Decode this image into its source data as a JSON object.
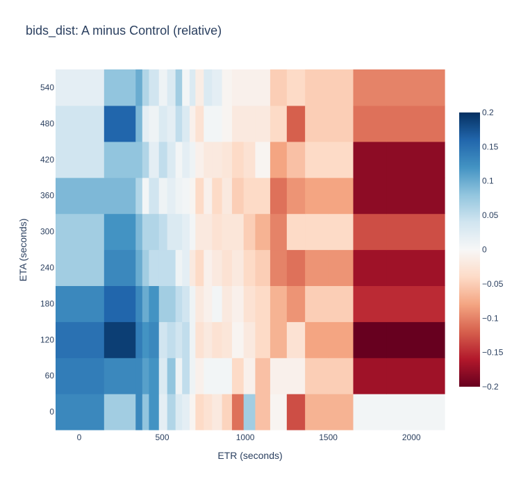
{
  "chart_data": {
    "type": "heatmap",
    "title": "bids_dist: A minus Control (relative)",
    "xlabel": "ETR (seconds)",
    "ylabel": "ETA (seconds)",
    "colorscale": "RdBu",
    "zlim": [
      -0.2,
      0.2
    ],
    "x_edges": [
      -142,
      150,
      340,
      380,
      420,
      480,
      530,
      580,
      620,
      665,
      700,
      750,
      800,
      860,
      920,
      990,
      1060,
      1150,
      1250,
      1360,
      1500,
      1650,
      1850,
      2200
    ],
    "y_edges": [
      -30,
      30,
      90,
      150,
      210,
      270,
      330,
      390,
      450,
      510,
      570
    ],
    "x_ticks": [
      {
        "value": 0,
        "label": "0"
      },
      {
        "value": 500,
        "label": "500"
      },
      {
        "value": 1000,
        "label": "1000"
      },
      {
        "value": 1500,
        "label": "1500"
      },
      {
        "value": 2000,
        "label": "2000"
      }
    ],
    "y_ticks": [
      {
        "value": 0,
        "label": "0"
      },
      {
        "value": 60,
        "label": "60"
      },
      {
        "value": 120,
        "label": "120"
      },
      {
        "value": 180,
        "label": "180"
      },
      {
        "value": 240,
        "label": "240"
      },
      {
        "value": 300,
        "label": "300"
      },
      {
        "value": 360,
        "label": "360"
      },
      {
        "value": 420,
        "label": "420"
      },
      {
        "value": 480,
        "label": "480"
      },
      {
        "value": 540,
        "label": "540"
      }
    ],
    "colorbar_ticks": [
      {
        "value": 0.2,
        "label": "0.2"
      },
      {
        "value": 0.15,
        "label": "0.15"
      },
      {
        "value": 0.1,
        "label": "0.1"
      },
      {
        "value": 0.05,
        "label": "0.05"
      },
      {
        "value": 0,
        "label": "0"
      },
      {
        "value": -0.05,
        "label": "−0.05"
      },
      {
        "value": -0.1,
        "label": "−0.1"
      },
      {
        "value": -0.15,
        "label": "−0.15"
      },
      {
        "value": -0.2,
        "label": "−0.2"
      }
    ],
    "z": [
      [
        0.13,
        0.07,
        0.13,
        0.08,
        0.12,
        0.02,
        0.06,
        0.03,
        0.02,
        -0.005,
        -0.04,
        -0.03,
        -0.02,
        -0.045,
        -0.11,
        0.07,
        -0.06,
        -0.005,
        -0.13,
        -0.07,
        -0.07,
        0.005,
        0.005
      ],
      [
        0.14,
        0.13,
        0.13,
        0.11,
        0.12,
        0.03,
        0.08,
        0.01,
        0.05,
        0.01,
        -0.01,
        0.005,
        0.005,
        0.005,
        -0.04,
        -0.01,
        -0.06,
        -0.01,
        -0.01,
        -0.05,
        -0.05,
        -0.17,
        -0.17
      ],
      [
        0.15,
        0.19,
        0.14,
        0.12,
        0.13,
        0.04,
        0.05,
        0.04,
        0.05,
        0.01,
        -0.03,
        -0.02,
        -0.03,
        -0.025,
        -0.005,
        -0.02,
        -0.04,
        -0.07,
        -0.03,
        -0.08,
        -0.08,
        -0.2,
        -0.2
      ],
      [
        0.13,
        0.16,
        0.13,
        0.1,
        0.12,
        0.07,
        0.07,
        0.05,
        0.04,
        0.01,
        -0.02,
        -0.01,
        0.005,
        -0.02,
        -0.01,
        -0.03,
        -0.04,
        -0.07,
        -0.09,
        -0.05,
        -0.05,
        -0.15,
        -0.15
      ],
      [
        0.07,
        0.13,
        0.1,
        0.07,
        0.05,
        0.05,
        0.05,
        0.01,
        0.02,
        -0.02,
        -0.04,
        -0.01,
        -0.02,
        -0.03,
        -0.02,
        -0.04,
        -0.05,
        -0.1,
        -0.11,
        -0.09,
        -0.09,
        -0.17,
        -0.17
      ],
      [
        0.07,
        0.12,
        0.09,
        0.06,
        0.06,
        0.05,
        0.03,
        0.03,
        0.02,
        0.005,
        -0.02,
        -0.02,
        -0.03,
        -0.025,
        -0.025,
        -0.05,
        -0.07,
        -0.1,
        -0.04,
        -0.04,
        -0.04,
        -0.13,
        -0.13
      ],
      [
        0.09,
        0.09,
        0.06,
        0.005,
        0.04,
        0.01,
        0.02,
        0.01,
        0.005,
        -0.005,
        -0.04,
        -0.01,
        -0.04,
        -0.02,
        -0.05,
        -0.04,
        -0.04,
        -0.11,
        -0.09,
        -0.08,
        -0.08,
        -0.18,
        -0.18
      ],
      [
        0.04,
        0.08,
        0.08,
        0.06,
        0.02,
        0.05,
        0.03,
        0.005,
        0.02,
        0.01,
        -0.01,
        -0.02,
        -0.02,
        -0.025,
        -0.04,
        -0.03,
        -0.005,
        -0.08,
        -0.06,
        -0.04,
        -0.04,
        -0.18,
        -0.18
      ],
      [
        0.04,
        0.16,
        0.09,
        0.02,
        0.01,
        0.03,
        0.02,
        0.05,
        0.03,
        -0.01,
        -0.03,
        0.005,
        0.005,
        -0.005,
        -0.02,
        -0.02,
        -0.02,
        -0.04,
        -0.12,
        -0.05,
        -0.05,
        -0.11,
        -0.11
      ],
      [
        0.02,
        0.08,
        0.1,
        0.06,
        0.04,
        0.01,
        0.03,
        0.07,
        0.005,
        0.03,
        -0.015,
        0.03,
        0.02,
        -0.005,
        -0.01,
        -0.01,
        -0.01,
        -0.05,
        -0.04,
        -0.05,
        -0.05,
        -0.1,
        -0.1
      ]
    ]
  }
}
